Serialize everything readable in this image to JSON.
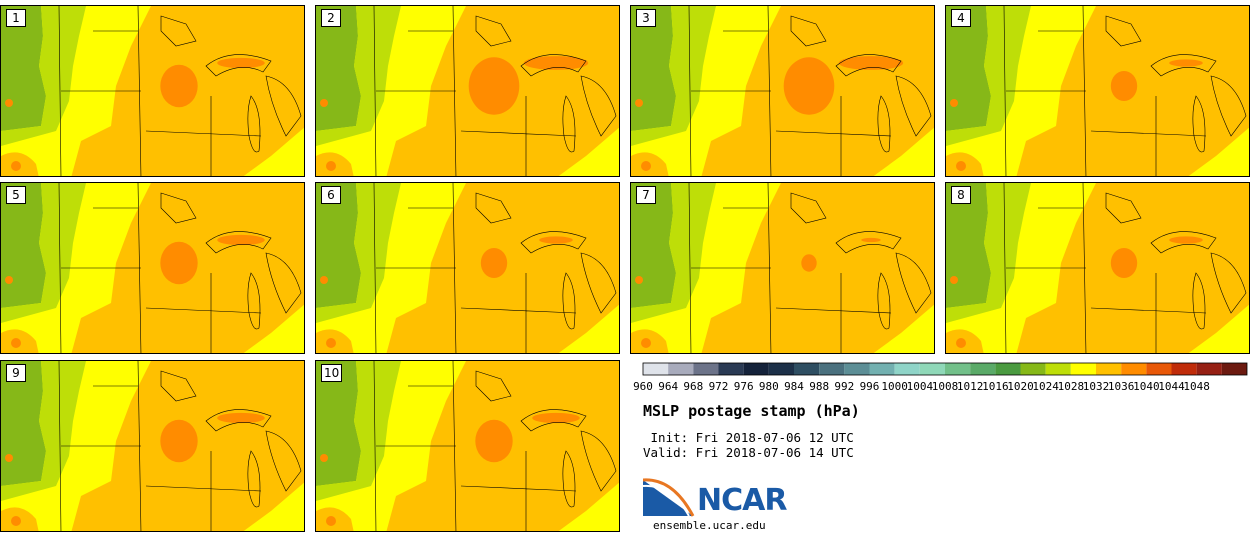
{
  "title": "MSLP postage stamp (hPa)",
  "init_line": " Init: Fri 2018-07-06 12 UTC",
  "valid_line": "Valid: Fri 2018-07-06 14 UTC",
  "logo": {
    "text": "NCAR",
    "website": "ensemble.ucar.edu"
  },
  "members": [
    {
      "label": "1",
      "high_pressure_core": "moderate"
    },
    {
      "label": "2",
      "high_pressure_core": "large"
    },
    {
      "label": "3",
      "high_pressure_core": "large"
    },
    {
      "label": "4",
      "high_pressure_core": "small"
    },
    {
      "label": "5",
      "high_pressure_core": "moderate"
    },
    {
      "label": "6",
      "high_pressure_core": "small"
    },
    {
      "label": "7",
      "high_pressure_core": "tiny"
    },
    {
      "label": "8",
      "high_pressure_core": "small"
    },
    {
      "label": "9",
      "high_pressure_core": "moderate"
    },
    {
      "label": "10",
      "high_pressure_core": "moderate"
    }
  ],
  "colorbar": {
    "ticks": [
      "960",
      "964",
      "968",
      "972",
      "976",
      "980",
      "984",
      "988",
      "992",
      "996",
      "1000",
      "1004",
      "1008",
      "1012",
      "1016",
      "1020",
      "1024",
      "1028",
      "1032",
      "1036",
      "1040",
      "1044",
      "1048"
    ],
    "colors": [
      "#dfe3ea",
      "#a8abbc",
      "#6c7389",
      "#2a3a54",
      "#14223a",
      "#1c3048",
      "#2e4e62",
      "#4a707e",
      "#5c8e96",
      "#72b0b0",
      "#8fd4c8",
      "#8fd8b8",
      "#72c08a",
      "#5aaa68",
      "#4a9a40",
      "#86b818",
      "#bede08",
      "#ffff00",
      "#ffc000",
      "#ff8c00",
      "#e85808",
      "#c02c0a",
      "#962014",
      "#6c1a10"
    ]
  }
}
